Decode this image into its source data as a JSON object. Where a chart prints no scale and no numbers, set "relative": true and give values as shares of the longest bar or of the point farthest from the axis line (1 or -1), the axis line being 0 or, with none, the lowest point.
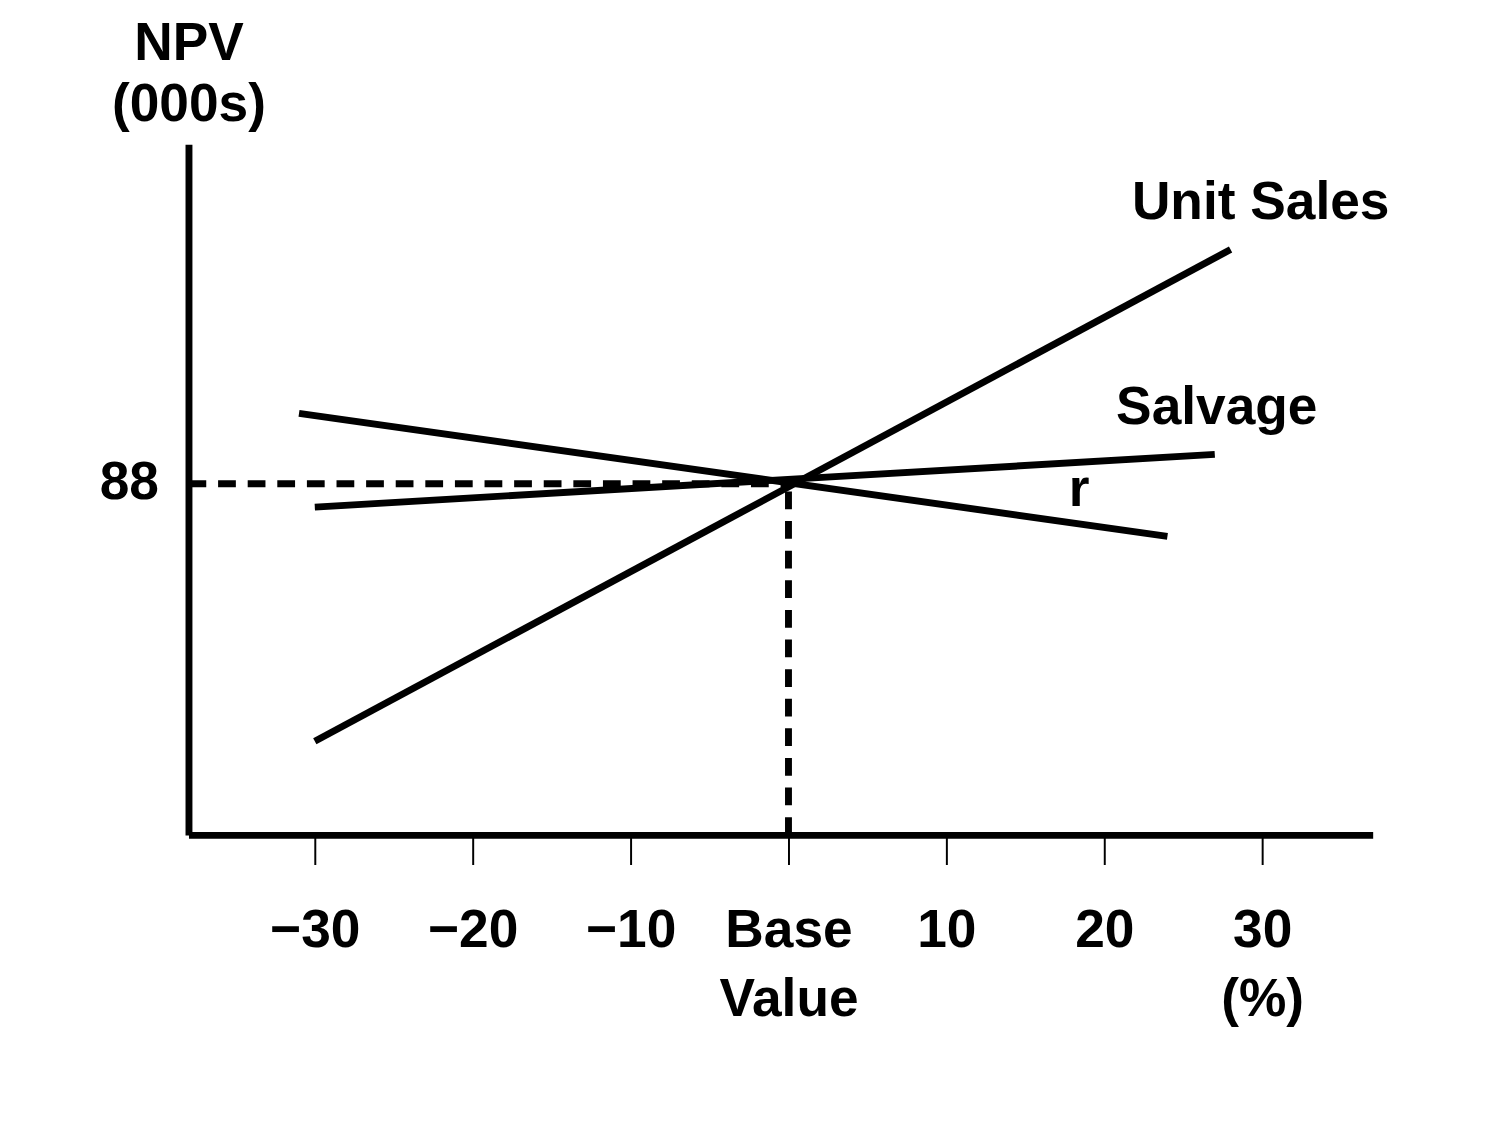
{
  "chart_data": {
    "type": "line",
    "relative": true,
    "ylabel": "NPV (000s)",
    "xlim": [
      -38,
      37
    ],
    "xticks": [
      -30,
      -20,
      -10,
      {
        "value": 0,
        "label": "Base Value"
      },
      10,
      20,
      {
        "value": 30,
        "label": "30 (%)"
      }
    ],
    "series": [
      {
        "name": "Unit Sales",
        "color": "#000000",
        "x": [
          -30,
          28
        ],
        "values": [
          0.16,
          1
        ]
      },
      {
        "name": "Salvage",
        "color": "#000000",
        "x": [
          -30,
          27
        ],
        "values": [
          0.56,
          0.65
        ]
      },
      {
        "name": "r",
        "color": "#000000",
        "x": [
          -31,
          24
        ],
        "values": [
          0.72,
          0.51
        ]
      }
    ],
    "ref_lines": [
      {
        "axis": "y",
        "value": 0.6,
        "line_style": "dashed",
        "color": "#000000"
      },
      {
        "axis": "x",
        "value": 0,
        "line_style": "dashed",
        "color": "#000000"
      }
    ],
    "annotations": [
      "88"
    ],
    "grid": false,
    "legend": false,
    "marker": "none",
    "line_style": "solid"
  }
}
